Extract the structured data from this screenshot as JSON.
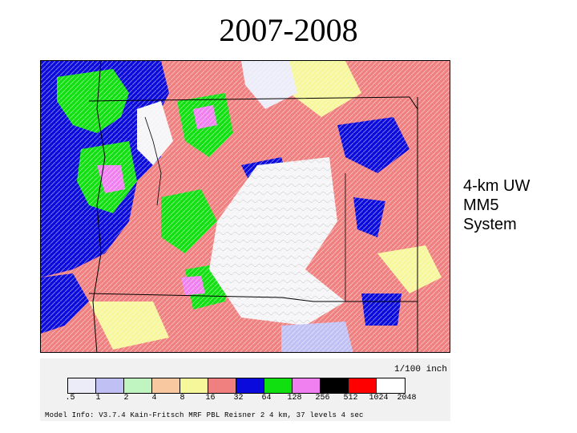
{
  "title": "2007-2008",
  "caption": [
    "4-km UW",
    "MM5",
    "System"
  ],
  "legend": {
    "units": "1/100 inch",
    "labels": [
      ".5",
      "1",
      "2",
      "4",
      "8",
      "16",
      "32",
      "64",
      "128",
      "256",
      "512",
      "1024",
      "2048"
    ],
    "colors": [
      "#ececf9",
      "#c0c0f4",
      "#c0f4c0",
      "#f8c8a0",
      "#f6f69a",
      "#f08080",
      "#0a0adc",
      "#10e010",
      "#f080f0",
      "#000000",
      "#ff0000",
      "#ffffff"
    ],
    "model_info": "Model Info: V3.7.4 Kain-Fritsch MRF PBL   Reisner 2   4 km, 37 levels   4 sec"
  }
}
